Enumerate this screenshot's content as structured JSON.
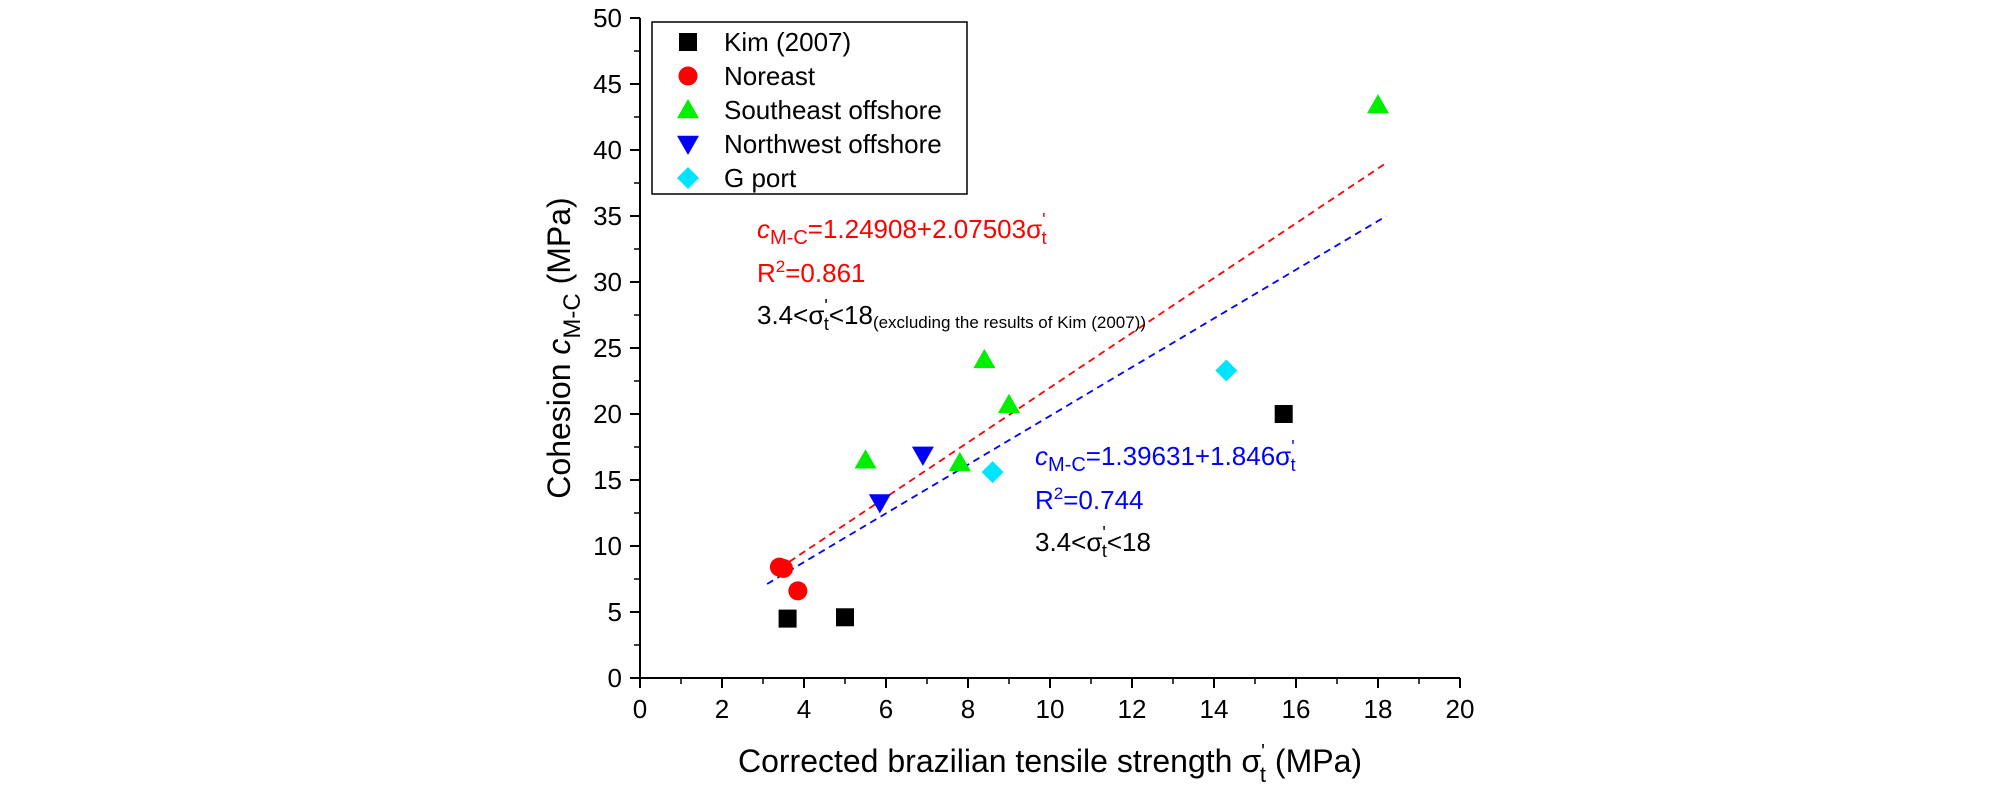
{
  "chart_data": {
    "type": "scatter",
    "xlabel": "Corrected brazilian tensile strength",
    "xlabel_symbol": "σ",
    "xlabel_sup": "'",
    "xlabel_sub": "t",
    "xlabel_unit": "(MPa)",
    "ylabel": "Cohesion",
    "ylabel_symbol": "c",
    "ylabel_sub": "M-C",
    "ylabel_unit": "(MPa)",
    "xlim": [
      0,
      20
    ],
    "ylim": [
      0,
      50
    ],
    "xticks": [
      0,
      2,
      4,
      6,
      8,
      10,
      12,
      14,
      16,
      18,
      20
    ],
    "yticks": [
      0,
      5,
      10,
      15,
      20,
      25,
      30,
      35,
      40,
      45,
      50
    ],
    "series": [
      {
        "name": "Kim (2007)",
        "marker": "square",
        "color": "#000000",
        "points": [
          [
            3.6,
            4.5
          ],
          [
            5.0,
            4.6
          ],
          [
            15.7,
            20.0
          ]
        ]
      },
      {
        "name": "Noreast",
        "marker": "circle",
        "color": "#ff0000",
        "points": [
          [
            3.4,
            8.4
          ],
          [
            3.5,
            8.3
          ],
          [
            3.85,
            6.6
          ]
        ]
      },
      {
        "name": "Southeast offshore",
        "marker": "triangle-up",
        "color": "#00ee00",
        "points": [
          [
            5.5,
            16.5
          ],
          [
            7.8,
            16.3
          ],
          [
            8.4,
            24.1
          ],
          [
            9.0,
            20.7
          ],
          [
            18.0,
            43.4
          ]
        ]
      },
      {
        "name": "Northwest offshore",
        "marker": "triangle-down",
        "color": "#0000ff",
        "points": [
          [
            5.85,
            13.3
          ],
          [
            6.9,
            16.9
          ]
        ]
      },
      {
        "name": "G port",
        "marker": "diamond",
        "color": "#00e5ff",
        "points": [
          [
            8.6,
            15.6
          ],
          [
            14.3,
            23.3
          ]
        ]
      }
    ],
    "fits": [
      {
        "color": "#ff0000",
        "intercept": 1.24908,
        "slope": 2.07503,
        "x_range": [
          3.4,
          18.2
        ],
        "eq_symbol": "c",
        "eq_sub": "M-C",
        "eq_rhs": "=1.24908+2.07503σ",
        "eq_sup": "'",
        "eq_sub2": "t",
        "r2_prefix": "R",
        "r2_sup": "2",
        "r2_value": "=0.861",
        "range_prefix": "3.4<σ",
        "range_sup": "'",
        "range_sub": "t",
        "range_suffix": "<18",
        "range_note": "(excluding the results of Kim (2007))"
      },
      {
        "color": "#0000ff",
        "intercept": 1.39631,
        "slope": 1.846,
        "x_range": [
          3.1,
          18.2
        ],
        "eq_symbol": "c",
        "eq_sub": "M-C",
        "eq_rhs": "=1.39631+1.846σ",
        "eq_sup": "'",
        "eq_sub2": "t",
        "r2_prefix": "R",
        "r2_sup": "2",
        "r2_value": "=0.744",
        "range_prefix": "3.4<σ",
        "range_sup": "'",
        "range_sub": "t",
        "range_suffix": "<18",
        "range_note": ""
      }
    ],
    "legend_position": "top-left"
  }
}
